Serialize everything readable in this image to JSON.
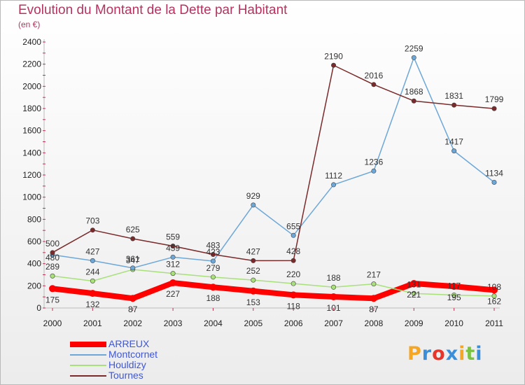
{
  "chart_data": {
    "type": "line",
    "title": "Evolution du Montant de la Dette par Habitant",
    "subtitle": "(en €)",
    "x": [
      "2000",
      "2001",
      "2002",
      "2003",
      "2004",
      "2005",
      "2006",
      "2007",
      "2008",
      "2009",
      "2010",
      "2011"
    ],
    "ylim": [
      0,
      2400
    ],
    "yticks": [
      0,
      200,
      400,
      600,
      800,
      1000,
      1200,
      1400,
      1600,
      1800,
      2000,
      2200,
      2400
    ],
    "grid": false,
    "legend_position": "bottom-left",
    "series": [
      {
        "name": "ARREUX",
        "color": "#ff0000",
        "values": [
          175,
          132,
          87,
          227,
          188,
          153,
          118,
          101,
          87,
          221,
          195,
          162
        ]
      },
      {
        "name": "Montcornet",
        "color": "#6da7d8",
        "values": [
          480,
          427,
          361,
          459,
          423,
          929,
          655,
          1112,
          1236,
          2259,
          1417,
          1134
        ]
      },
      {
        "name": "Houldizy",
        "color": "#a8e07a",
        "values": [
          289,
          244,
          347,
          312,
          279,
          252,
          220,
          188,
          217,
          131,
          117,
          108
        ]
      },
      {
        "name": "Tournes",
        "color": "#7a2a2a",
        "values": [
          500,
          703,
          625,
          559,
          483,
          427,
          428,
          2190,
          2016,
          1868,
          1831,
          1799
        ]
      }
    ]
  },
  "logo": {
    "letters": [
      "P",
      "r",
      "o",
      "x",
      "i",
      "t",
      "i"
    ],
    "colors": [
      "#f5a623",
      "#3b8fd9",
      "#e8352b",
      "#3b8fd9",
      "#f5a623",
      "#7cc242",
      "#3b8fd9"
    ]
  }
}
